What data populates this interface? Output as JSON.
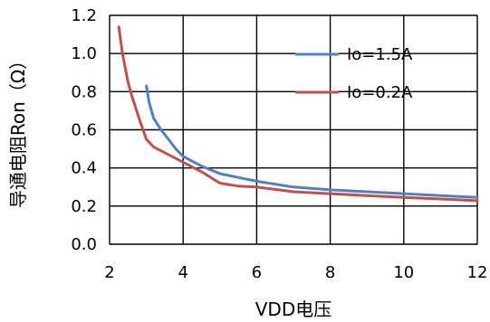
{
  "chart_data": {
    "type": "line",
    "title": "",
    "xlabel": "VDD电压",
    "ylabel": "导通电阻Ron（Ω）",
    "xlim": [
      2,
      12
    ],
    "ylim": [
      0,
      1.2
    ],
    "x_ticks": [
      "2",
      "4",
      "6",
      "8",
      "10",
      "12"
    ],
    "y_ticks": [
      "0.0",
      "0.2",
      "0.4",
      "0.6",
      "0.8",
      "1.0",
      "1.2"
    ],
    "grid": "horizontal and vertical",
    "legend_position": "top-right",
    "series": [
      {
        "name": "Io=1.5A",
        "color": "#4F81BD",
        "points": [
          [
            3.0,
            0.83
          ],
          [
            3.08,
            0.74
          ],
          [
            3.2,
            0.66
          ],
          [
            3.4,
            0.6
          ],
          [
            3.6,
            0.55
          ],
          [
            3.8,
            0.5
          ],
          [
            4.0,
            0.46
          ],
          [
            4.5,
            0.41
          ],
          [
            5.0,
            0.37
          ],
          [
            5.5,
            0.35
          ],
          [
            6.0,
            0.33
          ],
          [
            7.0,
            0.3
          ],
          [
            8.0,
            0.285
          ],
          [
            9.0,
            0.275
          ],
          [
            10.0,
            0.265
          ],
          [
            11.0,
            0.255
          ],
          [
            12.0,
            0.245
          ]
        ]
      },
      {
        "name": "Io=0.2A",
        "color": "#C0504D",
        "points": [
          [
            2.25,
            1.14
          ],
          [
            2.35,
            1.0
          ],
          [
            2.5,
            0.85
          ],
          [
            2.6,
            0.78
          ],
          [
            2.8,
            0.66
          ],
          [
            3.0,
            0.55
          ],
          [
            3.2,
            0.51
          ],
          [
            3.5,
            0.48
          ],
          [
            4.0,
            0.43
          ],
          [
            4.5,
            0.38
          ],
          [
            5.0,
            0.32
          ],
          [
            5.5,
            0.305
          ],
          [
            6.0,
            0.3
          ],
          [
            7.0,
            0.275
          ],
          [
            8.0,
            0.265
          ],
          [
            9.0,
            0.255
          ],
          [
            10.0,
            0.245
          ],
          [
            11.0,
            0.237
          ],
          [
            12.0,
            0.228
          ]
        ]
      }
    ]
  }
}
